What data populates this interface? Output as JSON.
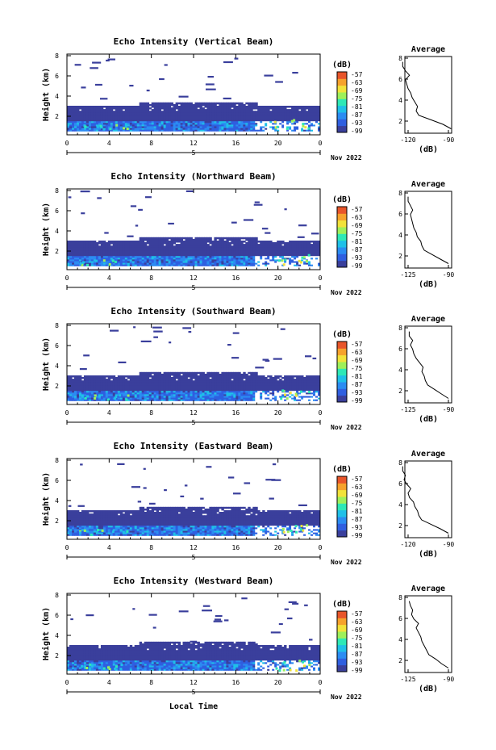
{
  "chart_data": [
    {
      "type": "heatmap",
      "title": "Echo Intensity (Vertical Beam)",
      "ylabel": "Height (km)",
      "yticks": [
        "8",
        "6",
        "4",
        "2"
      ],
      "xticks": [
        "0",
        "4",
        "8",
        "12",
        "16",
        "20",
        "0"
      ],
      "day": "5",
      "date_label": "Nov 2022",
      "colorbar_unit": "(dB)",
      "colorbar_ticks": [
        "-57",
        "-63",
        "-69",
        "-75",
        "-81",
        "-87",
        "-93",
        "-99"
      ],
      "average": {
        "title": "Average",
        "xticks": [
          "-120",
          "-90"
        ],
        "yticks": [
          "8",
          "6",
          "4",
          "2"
        ],
        "xlabel": "(dB)",
        "profile": [
          [
            -88,
            0.5
          ],
          [
            -94,
            1.0
          ],
          [
            -103,
            1.5
          ],
          [
            -112,
            2.0
          ],
          [
            -114,
            2.5
          ],
          [
            -113,
            3.0
          ],
          [
            -115,
            3.5
          ],
          [
            -117,
            4.0
          ],
          [
            -118,
            4.5
          ],
          [
            -120,
            5.0
          ],
          [
            -121,
            5.5
          ],
          [
            -122,
            6.0
          ],
          [
            -119,
            6.5
          ],
          [
            -122,
            7.0
          ],
          [
            -124,
            7.5
          ],
          [
            -124,
            8.0
          ]
        ]
      }
    },
    {
      "type": "heatmap",
      "title": "Echo Intensity (Northward Beam)",
      "ylabel": "Height (km)",
      "yticks": [
        "8",
        "6",
        "4",
        "2"
      ],
      "xticks": [
        "0",
        "4",
        "8",
        "12",
        "16",
        "20",
        "0"
      ],
      "day": "5",
      "date_label": "Nov 2022",
      "colorbar_unit": "(dB)",
      "colorbar_ticks": [
        "-57",
        "-63",
        "-69",
        "-75",
        "-81",
        "-87",
        "-93",
        "-99"
      ],
      "average": {
        "title": "Average",
        "xticks": [
          "-125",
          "-90"
        ],
        "yticks": [
          "8",
          "6",
          "4",
          "2"
        ],
        "xlabel": "(dB)",
        "profile": [
          [
            -90,
            0.5
          ],
          [
            -97,
            1.0
          ],
          [
            -104,
            1.5
          ],
          [
            -111,
            2.0
          ],
          [
            -113,
            2.5
          ],
          [
            -114,
            3.0
          ],
          [
            -117,
            3.5
          ],
          [
            -118,
            4.0
          ],
          [
            -120,
            4.5
          ],
          [
            -121,
            5.0
          ],
          [
            -122,
            5.5
          ],
          [
            -123,
            6.0
          ],
          [
            -121,
            6.5
          ],
          [
            -123,
            7.0
          ],
          [
            -125,
            7.5
          ],
          [
            -125,
            8.0
          ]
        ]
      }
    },
    {
      "type": "heatmap",
      "title": "Echo Intensity (Southward Beam)",
      "ylabel": "Height (km)",
      "yticks": [
        "8",
        "6",
        "4",
        "2"
      ],
      "xticks": [
        "0",
        "4",
        "8",
        "12",
        "16",
        "20",
        "0"
      ],
      "day": "5",
      "date_label": "Nov 2022",
      "colorbar_unit": "(dB)",
      "colorbar_ticks": [
        "-57",
        "-63",
        "-69",
        "-75",
        "-81",
        "-87",
        "-93",
        "-99"
      ],
      "average": {
        "title": "Average",
        "xticks": [
          "-125",
          "-90"
        ],
        "yticks": [
          "8",
          "6",
          "4",
          "2"
        ],
        "xlabel": "(dB)",
        "profile": [
          [
            -90,
            0.5
          ],
          [
            -96,
            1.0
          ],
          [
            -102,
            1.5
          ],
          [
            -108,
            2.0
          ],
          [
            -110,
            2.5
          ],
          [
            -111,
            3.0
          ],
          [
            -113,
            3.5
          ],
          [
            -112,
            4.0
          ],
          [
            -115,
            4.5
          ],
          [
            -118,
            5.0
          ],
          [
            -120,
            5.5
          ],
          [
            -121,
            6.0
          ],
          [
            -123,
            6.5
          ],
          [
            -121,
            7.0
          ],
          [
            -124,
            7.5
          ],
          [
            -124,
            8.0
          ]
        ]
      }
    },
    {
      "type": "heatmap",
      "title": "Echo Intensity (Eastward Beam)",
      "ylabel": "Height (km)",
      "yticks": [
        "8",
        "6",
        "4",
        "2"
      ],
      "xticks": [
        "0",
        "4",
        "8",
        "12",
        "16",
        "20",
        "0"
      ],
      "day": "5",
      "date_label": "Nov 2022",
      "colorbar_unit": "(dB)",
      "colorbar_ticks": [
        "-57",
        "-63",
        "-69",
        "-75",
        "-81",
        "-87",
        "-93",
        "-99"
      ],
      "average": {
        "title": "Average",
        "xticks": [
          "-120",
          "-90"
        ],
        "yticks": [
          "8",
          "6",
          "4",
          "2"
        ],
        "xlabel": "(dB)",
        "profile": [
          [
            -90,
            0.5
          ],
          [
            -96,
            1.0
          ],
          [
            -103,
            1.5
          ],
          [
            -110,
            2.0
          ],
          [
            -112,
            2.5
          ],
          [
            -113,
            3.0
          ],
          [
            -115,
            3.5
          ],
          [
            -116,
            4.0
          ],
          [
            -119,
            4.5
          ],
          [
            -120,
            5.0
          ],
          [
            -118,
            5.5
          ],
          [
            -121,
            6.0
          ],
          [
            -123,
            6.5
          ],
          [
            -122,
            7.0
          ],
          [
            -124,
            7.5
          ],
          [
            -124,
            8.0
          ]
        ]
      }
    },
    {
      "type": "heatmap",
      "title": "Echo Intensity (Westward Beam)",
      "ylabel": "Height (km)",
      "yticks": [
        "8",
        "6",
        "4",
        "2"
      ],
      "xticks": [
        "0",
        "4",
        "8",
        "12",
        "16",
        "20",
        "0"
      ],
      "day": "5",
      "date_label": "Nov 2022",
      "colorbar_unit": "(dB)",
      "colorbar_ticks": [
        "-57",
        "-63",
        "-69",
        "-75",
        "-81",
        "-87",
        "-93",
        "-99"
      ],
      "average": {
        "title": "Average",
        "xticks": [
          "-125",
          "-90"
        ],
        "yticks": [
          "8",
          "6",
          "4",
          "2"
        ],
        "xlabel": "(dB)",
        "profile": [
          [
            -90,
            0.5
          ],
          [
            -96,
            1.0
          ],
          [
            -101,
            1.5
          ],
          [
            -107,
            2.0
          ],
          [
            -109,
            2.5
          ],
          [
            -111,
            3.0
          ],
          [
            -113,
            3.5
          ],
          [
            -114,
            4.0
          ],
          [
            -116,
            4.5
          ],
          [
            -118,
            5.0
          ],
          [
            -116,
            5.5
          ],
          [
            -120,
            6.0
          ],
          [
            -122,
            6.5
          ],
          [
            -121,
            7.0
          ],
          [
            -123,
            7.5
          ],
          [
            -124,
            8.0
          ]
        ]
      }
    }
  ],
  "xlabel": "Local Time",
  "colorbar_colors": [
    "#3a3f9c",
    "#2f5fe0",
    "#2b8cf2",
    "#1fc0e8",
    "#2ee8b6",
    "#9ef05a",
    "#f2e23a",
    "#f6a22c",
    "#e8552a"
  ]
}
